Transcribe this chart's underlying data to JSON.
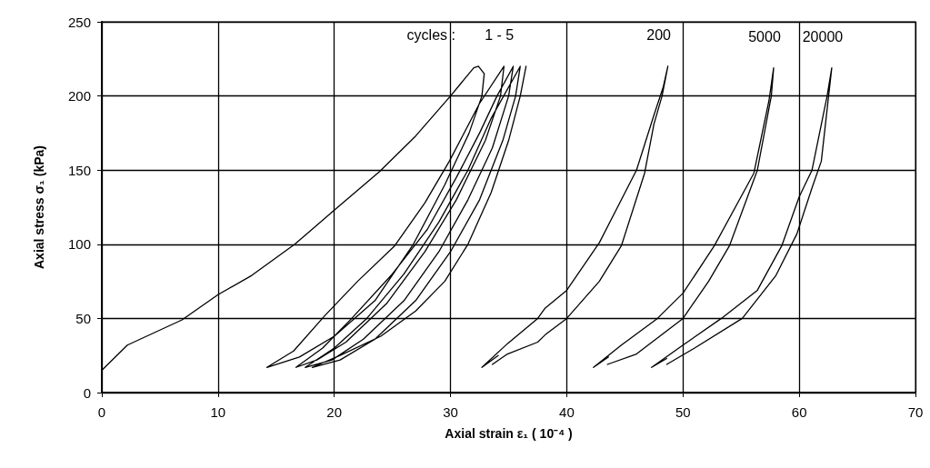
{
  "chart_data": {
    "type": "line",
    "xlabel": "Axial strain ε₁ ( 10⁻⁴ )",
    "ylabel": "Axial stress σ₁ (kPa)",
    "xlim": [
      0,
      70
    ],
    "xticks": [
      0,
      10,
      20,
      30,
      40,
      50,
      60,
      70
    ],
    "ylim": [
      0,
      250
    ],
    "yticks": [
      0,
      50,
      100,
      150,
      200,
      250
    ],
    "grid": true,
    "marker": "none",
    "line_style": "solid",
    "annotations": [
      "cycles :"
    ],
    "series": [
      {
        "name": "1 - 5",
        "color": "#000000",
        "x": [
          0,
          2.2,
          6.9,
          10,
          12.9,
          16.6,
          20,
          23.9,
          27,
          30,
          32,
          32.4,
          32.9,
          32.7,
          31.6,
          29.5,
          26.8,
          23.5,
          20,
          17,
          14.2,
          16.5,
          19.2,
          22,
          25.2,
          27.8,
          29.9,
          32.5,
          34.6,
          34.3,
          33,
          30.5,
          27.8,
          24.5,
          21,
          18.5,
          16.7,
          19,
          21.5,
          25,
          28,
          30.5,
          32.5,
          34,
          35.4,
          35,
          33.6,
          31.5,
          29,
          26,
          22.5,
          19.8,
          17.5,
          20,
          22.8,
          26,
          29,
          31.5,
          33.5,
          36,
          35.6,
          34.5,
          32.5,
          30,
          27,
          23.5,
          20.5,
          18.1,
          20.5,
          24,
          27,
          29.5,
          31.5,
          33.5,
          35,
          36,
          36.5
        ],
        "values": [
          15,
          32,
          49,
          66,
          79,
          100,
          123,
          149,
          173,
          200,
          219,
          220,
          215,
          200,
          175,
          140,
          100,
          62,
          38,
          24,
          17,
          28,
          52,
          75,
          99,
          128,
          156,
          195,
          220,
          200,
          170,
          130,
          95,
          60,
          34,
          22,
          17,
          30,
          50,
          80,
          110,
          145,
          175,
          200,
          220,
          200,
          165,
          130,
          95,
          62,
          36,
          22,
          17,
          30,
          50,
          80,
          115,
          150,
          185,
          220,
          200,
          170,
          130,
          95,
          62,
          36,
          22,
          17,
          25,
          38,
          55,
          75,
          100,
          135,
          170,
          200,
          220
        ]
      },
      {
        "name": "200",
        "color": "#000000",
        "x": [
          33.6,
          34.9,
          37.5,
          38.15,
          40,
          42.8,
          44.7,
          46.7,
          47.5,
          48.2,
          48.7,
          48.3,
          47.5,
          46,
          42.8,
          40,
          38.15,
          37.5,
          34.9,
          32.7,
          34.1
        ],
        "values": [
          19,
          26,
          34,
          39,
          50,
          75,
          99,
          148,
          181,
          200,
          220,
          206,
          187,
          150,
          101,
          69,
          57,
          50,
          33,
          17,
          25
        ]
      },
      {
        "name": "5000",
        "color": "#000000",
        "x": [
          43.5,
          46,
          50,
          52.2,
          54,
          56.4,
          57.6,
          57.8,
          57.4,
          56.1,
          52.7,
          50,
          47.8,
          44.7,
          42.3,
          43.6
        ],
        "values": [
          19,
          26,
          50,
          75,
          99,
          150,
          200,
          219,
          197,
          148,
          99,
          67,
          50,
          32,
          17,
          24
        ]
      },
      {
        "name": "20000",
        "color": "#000000",
        "x": [
          48.6,
          51,
          55.1,
          58,
          59.8,
          61.1,
          61.9,
          62.5,
          62.8,
          62.4,
          61.1,
          60,
          58.5,
          56.4,
          53.3,
          50,
          47.3,
          48.6
        ],
        "values": [
          19,
          30,
          50,
          79,
          107,
          138,
          156,
          198,
          219,
          200,
          150,
          132,
          99,
          69,
          50,
          32,
          17,
          23
        ]
      }
    ]
  }
}
